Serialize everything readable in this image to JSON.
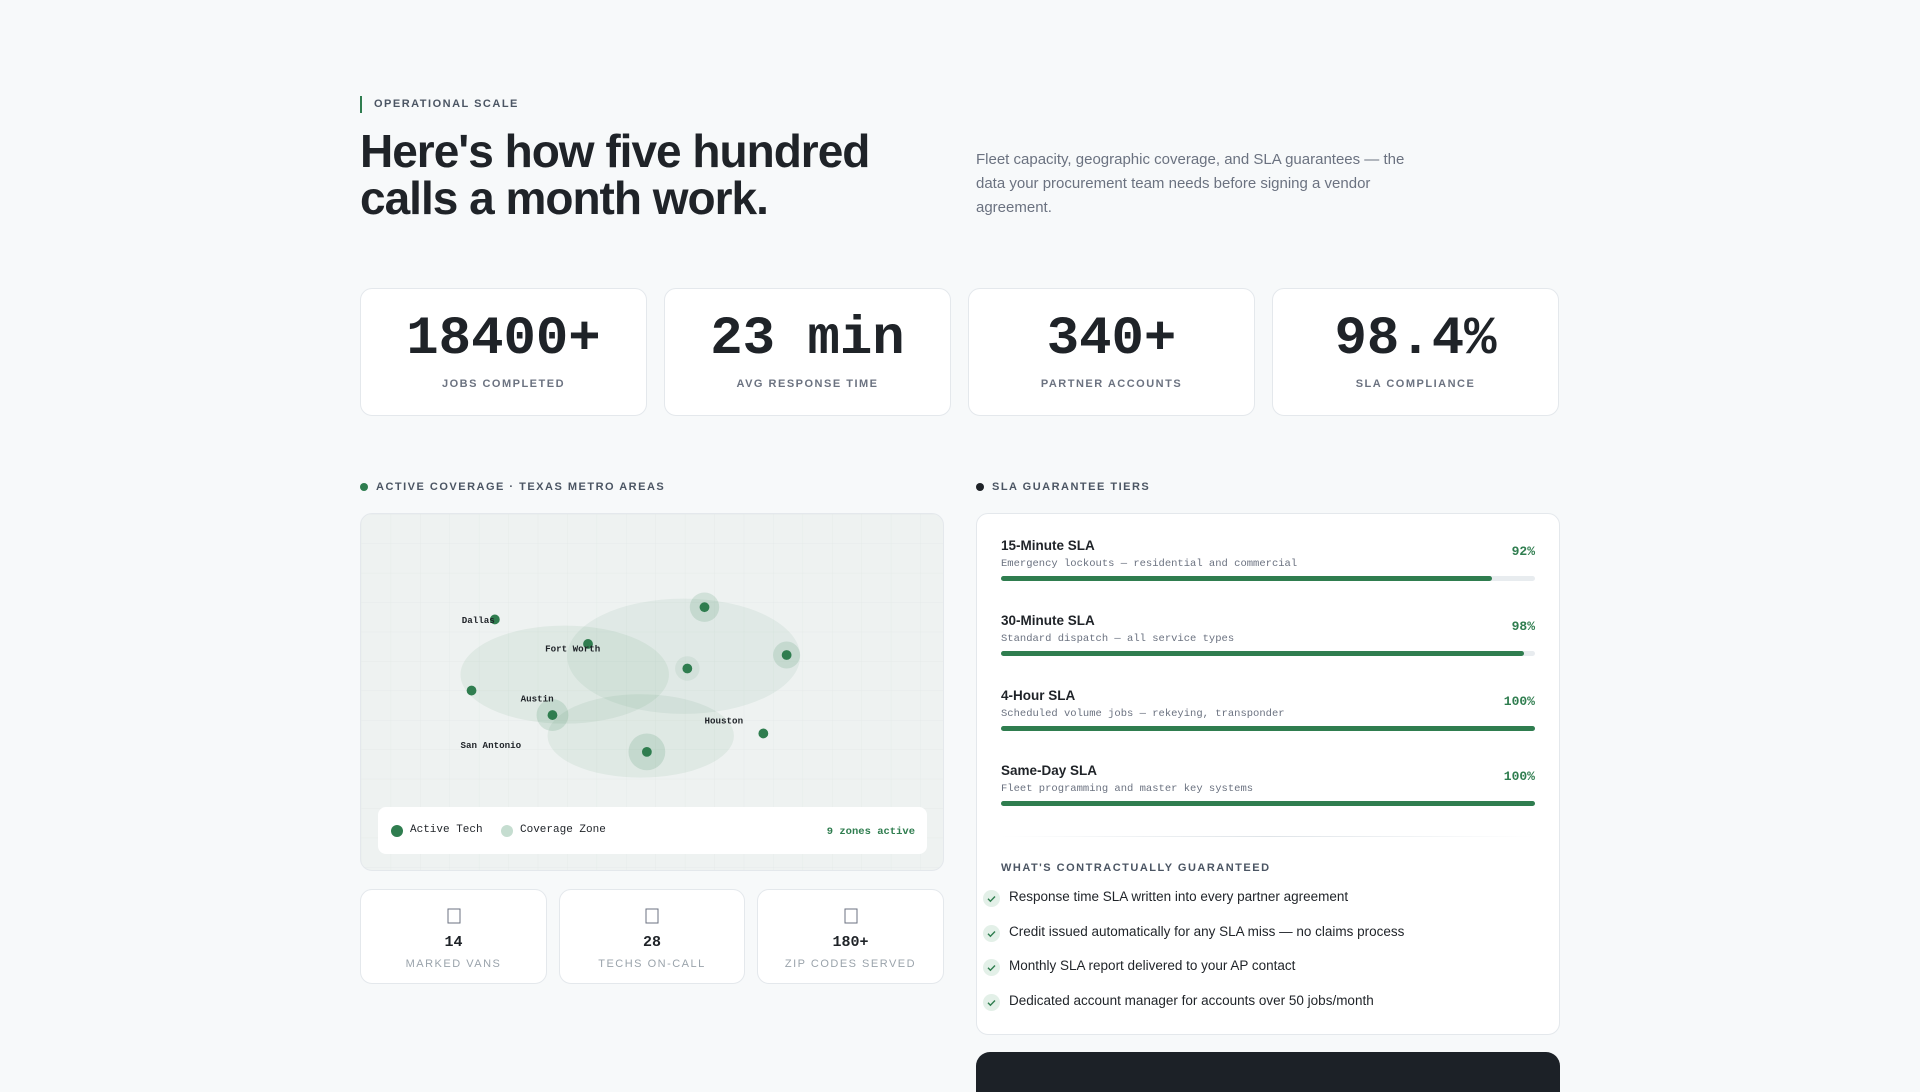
{
  "header": {
    "eyebrow": "OPERATIONAL SCALE",
    "title": "Here's how five hundred calls a month work.",
    "description": "Fleet capacity, geographic coverage, and SLA guarantees — the data your procurement team needs before signing a vendor agreement."
  },
  "stats": [
    {
      "value": "18400+",
      "label": "JOBS COMPLETED"
    },
    {
      "value": "23 min",
      "label": "AVG RESPONSE TIME"
    },
    {
      "value": "340+",
      "label": "PARTNER ACCOUNTS"
    },
    {
      "value": "98.4%",
      "label": "SLA COMPLIANCE"
    }
  ],
  "coverage": {
    "title": "ACTIVE COVERAGE · TEXAS METRO AREAS",
    "cities": [
      "Dallas",
      "Fort Worth",
      "Austin",
      "Houston",
      "San Antonio"
    ],
    "legend": [
      "Active Tech",
      "Coverage Zone"
    ],
    "status": "9 zones active",
    "resources": [
      {
        "value": "14",
        "label": "MARKED VANS"
      },
      {
        "value": "28",
        "label": "TECHS ON-CALL"
      },
      {
        "value": "180+",
        "label": "ZIP CODES SERVED"
      }
    ]
  },
  "sla": {
    "title": "SLA GUARANTEE TIERS",
    "tiers": [
      {
        "name": "15-Minute SLA",
        "description": "Emergency lockouts — residential and commercial",
        "value": 92,
        "value_label": "92%"
      },
      {
        "name": "30-Minute SLA",
        "description": "Standard dispatch — all service types",
        "value": 98,
        "value_label": "98%"
      },
      {
        "name": "4-Hour SLA",
        "description": "Scheduled volume jobs — rekeying, transponder",
        "value": 100,
        "value_label": "100%"
      },
      {
        "name": "Same-Day SLA",
        "description": "Fleet programming and master key systems",
        "value": 100,
        "value_label": "100%"
      }
    ],
    "guarantees_title": "WHAT'S CONTRACTUALLY GUARANTEED",
    "guarantees": [
      "Response time SLA written into every partner agreement",
      "Credit issued automatically for any SLA miss — no claims process",
      "Monthly SLA report delivered to your AP contact",
      "Dedicated account manager for accounts over 50 jobs/month"
    ]
  }
}
